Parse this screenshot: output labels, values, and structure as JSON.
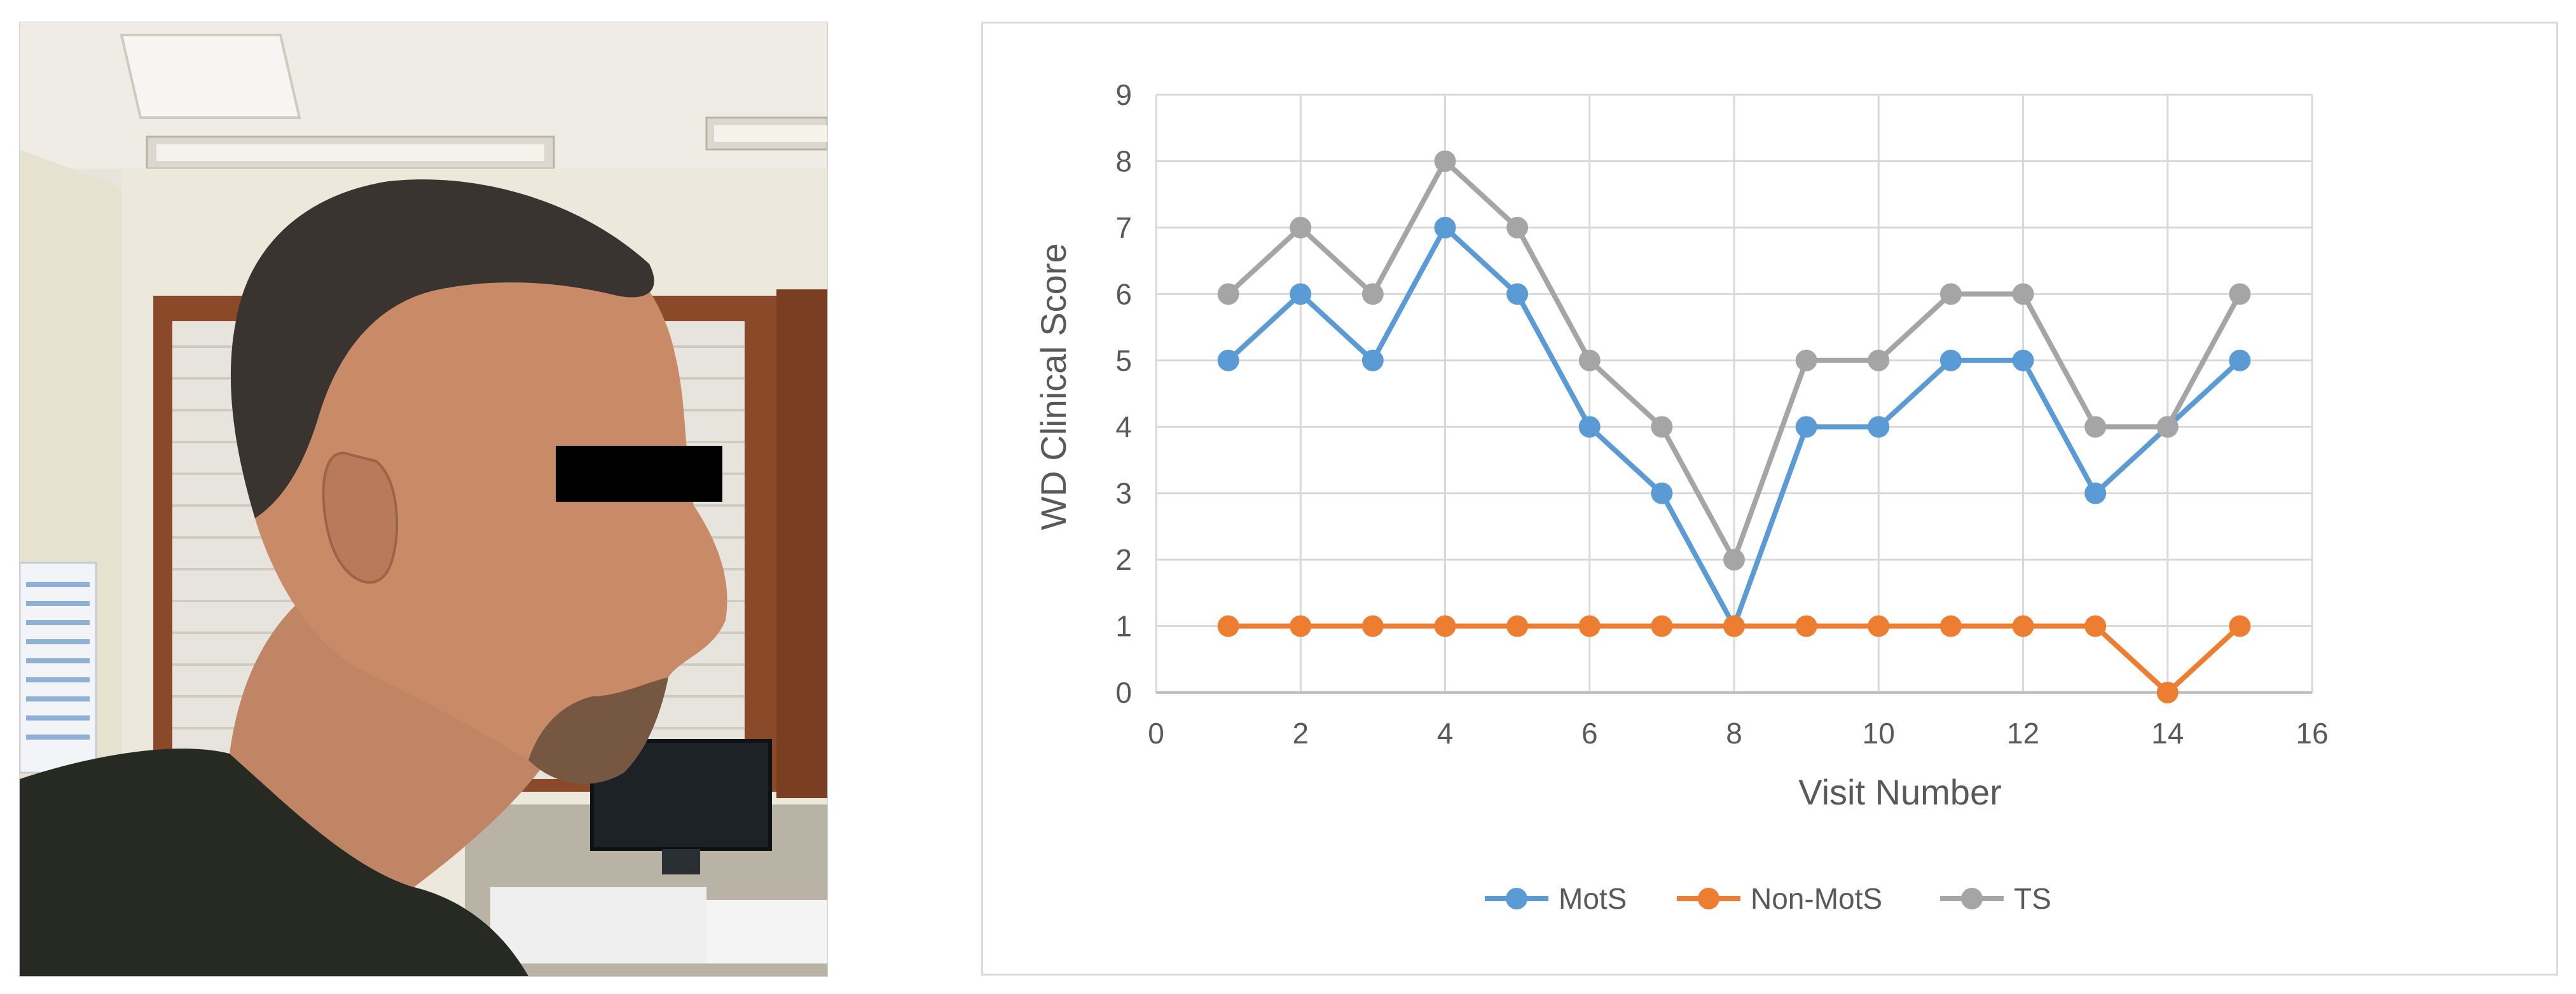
{
  "figure": {
    "left_panel": {
      "description": "Profile photograph of a man with eye region masked by a black bar"
    }
  },
  "colors": {
    "mots": "#5b9bd5",
    "non_mots": "#ed7d31",
    "ts": "#a5a5a5",
    "grid": "#d9d9d9",
    "text": "#595959"
  },
  "chart_data": {
    "type": "line",
    "title": "",
    "xlabel": "Visit Number",
    "ylabel": "WD Clinical Score",
    "xlim": [
      0,
      16
    ],
    "ylim": [
      0,
      9
    ],
    "xticks": [
      0,
      2,
      4,
      6,
      8,
      10,
      12,
      14,
      16
    ],
    "yticks": [
      0,
      1,
      2,
      3,
      4,
      5,
      6,
      7,
      8,
      9
    ],
    "grid": true,
    "legend": "bottom",
    "x": [
      1,
      2,
      3,
      4,
      5,
      6,
      7,
      8,
      9,
      10,
      11,
      12,
      13,
      14,
      15
    ],
    "series": [
      {
        "name": "MotS",
        "color": "#5b9bd5",
        "values": [
          5,
          6,
          5,
          7,
          6,
          4,
          3,
          1,
          4,
          4,
          5,
          5,
          3,
          4,
          5
        ]
      },
      {
        "name": "Non-MotS",
        "color": "#ed7d31",
        "values": [
          1,
          1,
          1,
          1,
          1,
          1,
          1,
          1,
          1,
          1,
          1,
          1,
          1,
          0,
          1
        ]
      },
      {
        "name": "TS",
        "color": "#a5a5a5",
        "values": [
          6,
          7,
          6,
          8,
          7,
          5,
          4,
          2,
          5,
          5,
          6,
          6,
          4,
          4,
          6
        ]
      }
    ]
  }
}
